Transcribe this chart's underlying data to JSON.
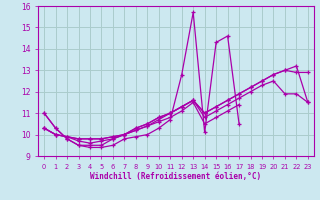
{
  "xlabel": "Windchill (Refroidissement éolien,°C)",
  "bg_color": "#cce8f0",
  "grid_color": "#aacccc",
  "line_color": "#aa00aa",
  "xlim": [
    -0.5,
    23.5
  ],
  "ylim": [
    9.0,
    16.0
  ],
  "xticks": [
    0,
    1,
    2,
    3,
    4,
    5,
    6,
    7,
    8,
    9,
    10,
    11,
    12,
    13,
    14,
    15,
    16,
    17,
    18,
    19,
    20,
    21,
    22,
    23
  ],
  "yticks": [
    9,
    10,
    11,
    12,
    13,
    14,
    15,
    16
  ],
  "series": [
    [
      11.0,
      10.3,
      9.8,
      9.5,
      9.4,
      9.4,
      9.5,
      9.8,
      9.9,
      10.0,
      10.3,
      10.7,
      12.8,
      15.7,
      10.1,
      14.3,
      14.6,
      10.5,
      null,
      null,
      null,
      null,
      null,
      null
    ],
    [
      11.0,
      10.3,
      9.8,
      9.5,
      9.5,
      9.5,
      9.8,
      10.0,
      10.2,
      10.4,
      10.6,
      10.8,
      11.1,
      11.5,
      10.5,
      10.8,
      11.1,
      11.4,
      null,
      null,
      null,
      null,
      null,
      null
    ],
    [
      10.3,
      10.0,
      9.9,
      9.7,
      9.6,
      9.7,
      9.8,
      10.0,
      10.2,
      10.4,
      10.7,
      11.0,
      11.3,
      11.6,
      10.8,
      11.1,
      11.4,
      11.7,
      12.0,
      12.3,
      12.5,
      11.9,
      11.9,
      11.5
    ],
    [
      10.3,
      10.0,
      9.9,
      9.8,
      9.8,
      9.8,
      9.9,
      10.0,
      10.3,
      10.5,
      10.8,
      11.0,
      11.3,
      11.6,
      11.0,
      11.3,
      11.6,
      11.9,
      12.2,
      12.5,
      12.8,
      13.0,
      12.9,
      12.9
    ],
    [
      10.3,
      10.0,
      9.9,
      9.8,
      9.8,
      9.8,
      9.9,
      10.0,
      10.3,
      10.5,
      10.8,
      11.0,
      11.3,
      11.6,
      11.0,
      11.3,
      11.6,
      11.9,
      12.2,
      12.5,
      12.8,
      13.0,
      13.2,
      11.5
    ]
  ]
}
